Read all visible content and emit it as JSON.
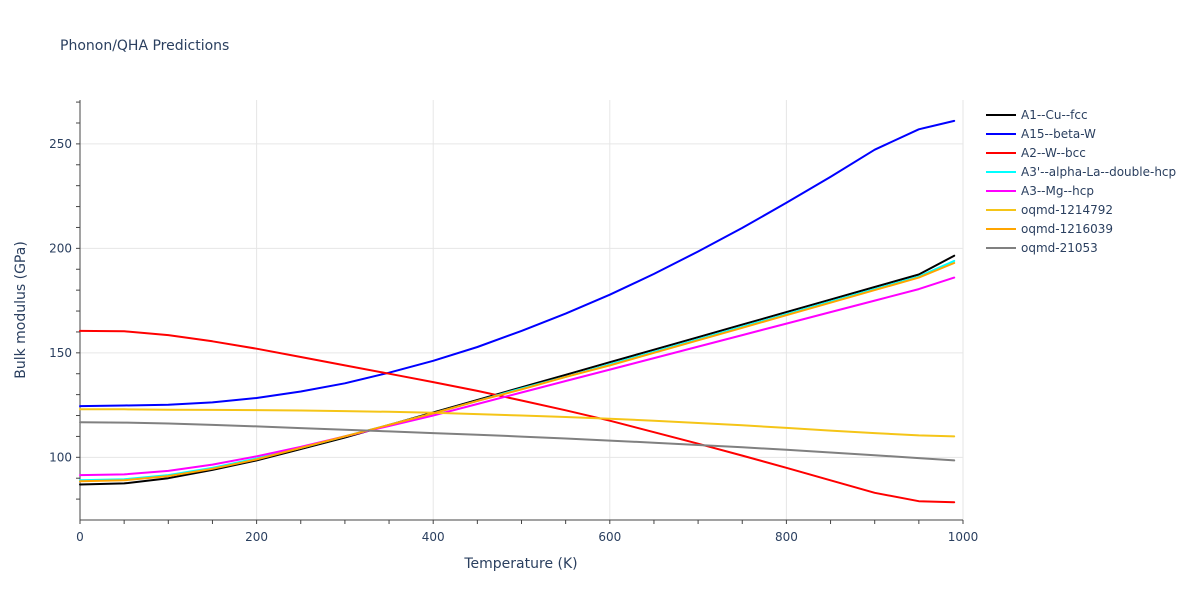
{
  "chart_data": {
    "type": "line",
    "title": "Phonon/QHA Predictions",
    "xlabel": "Temperature (K)",
    "ylabel": "Bulk modulus (GPa)",
    "xlim": [
      0,
      1000
    ],
    "ylim": [
      70,
      271
    ],
    "x_ticks": [
      0,
      200,
      400,
      600,
      800,
      1000
    ],
    "y_ticks": [
      100,
      150,
      200,
      250
    ],
    "grid": true,
    "legend_position": "top-right",
    "x": [
      0,
      50,
      100,
      150,
      200,
      250,
      300,
      350,
      400,
      450,
      500,
      550,
      600,
      650,
      700,
      750,
      800,
      850,
      900,
      950,
      990
    ],
    "series": [
      {
        "name": "A1--Cu--fcc",
        "color": "#000000",
        "values": [
          87,
          87.5,
          90,
          94,
          98.5,
          104,
          109.5,
          115.5,
          121.5,
          127.5,
          133.5,
          139.5,
          145.5,
          151.5,
          157.5,
          163.5,
          169.5,
          175.5,
          181.5,
          187.5,
          196.5
        ]
      },
      {
        "name": "A15--beta-W",
        "color": "#0000ff",
        "values": [
          124.5,
          124.8,
          125.2,
          126.3,
          128.4,
          131.5,
          135.4,
          140.5,
          146.2,
          152.8,
          160.5,
          168.8,
          177.8,
          187.8,
          198.5,
          209.8,
          221.8,
          234.2,
          247.2,
          257,
          261
        ]
      },
      {
        "name": "A2--W--bcc",
        "color": "#ff0000",
        "values": [
          160.5,
          160.3,
          158.5,
          155.5,
          152,
          148,
          144,
          140,
          136,
          131.8,
          127.2,
          122.5,
          117.5,
          112,
          106.5,
          100.8,
          95,
          89,
          83,
          79,
          78.5
        ]
      },
      {
        "name": "A3'--alpha-La--double-hcp",
        "color": "#00ffff",
        "values": [
          89,
          89.5,
          91.5,
          95,
          99.5,
          104.5,
          110,
          115.5,
          121,
          127,
          133,
          138.5,
          144.5,
          150.5,
          156.5,
          162.5,
          168.5,
          174.5,
          180.5,
          186.5,
          194
        ]
      },
      {
        "name": "A3--Mg--hcp",
        "color": "#ff00ff",
        "values": [
          91.5,
          91.8,
          93.5,
          96.5,
          100.5,
          105,
          110,
          115,
          120,
          125.5,
          131,
          136.5,
          142,
          147.5,
          153,
          158.5,
          164,
          169.5,
          175,
          180.5,
          186
        ]
      },
      {
        "name": "oqmd-1214792",
        "color": "#f5c518",
        "values": [
          123,
          123,
          122.8,
          122.7,
          122.6,
          122.4,
          122.1,
          121.8,
          121.3,
          120.7,
          120,
          119.3,
          118.5,
          117.5,
          116.4,
          115.3,
          114.1,
          112.8,
          111.6,
          110.5,
          110
        ]
      },
      {
        "name": "oqmd-1216039",
        "color": "#ffa500",
        "values": [
          88.5,
          89,
          91,
          94.5,
          99,
          104.5,
          110,
          115.5,
          121,
          127,
          132.5,
          138.5,
          144,
          150,
          156,
          162,
          168,
          174,
          180,
          186,
          193
        ]
      },
      {
        "name": "oqmd-21053",
        "color": "#808080",
        "values": [
          116.8,
          116.6,
          116.2,
          115.5,
          114.8,
          114,
          113.2,
          112.4,
          111.6,
          110.8,
          109.9,
          109,
          108,
          107,
          105.9,
          104.8,
          103.6,
          102.3,
          101,
          99.6,
          98.5
        ]
      }
    ]
  }
}
